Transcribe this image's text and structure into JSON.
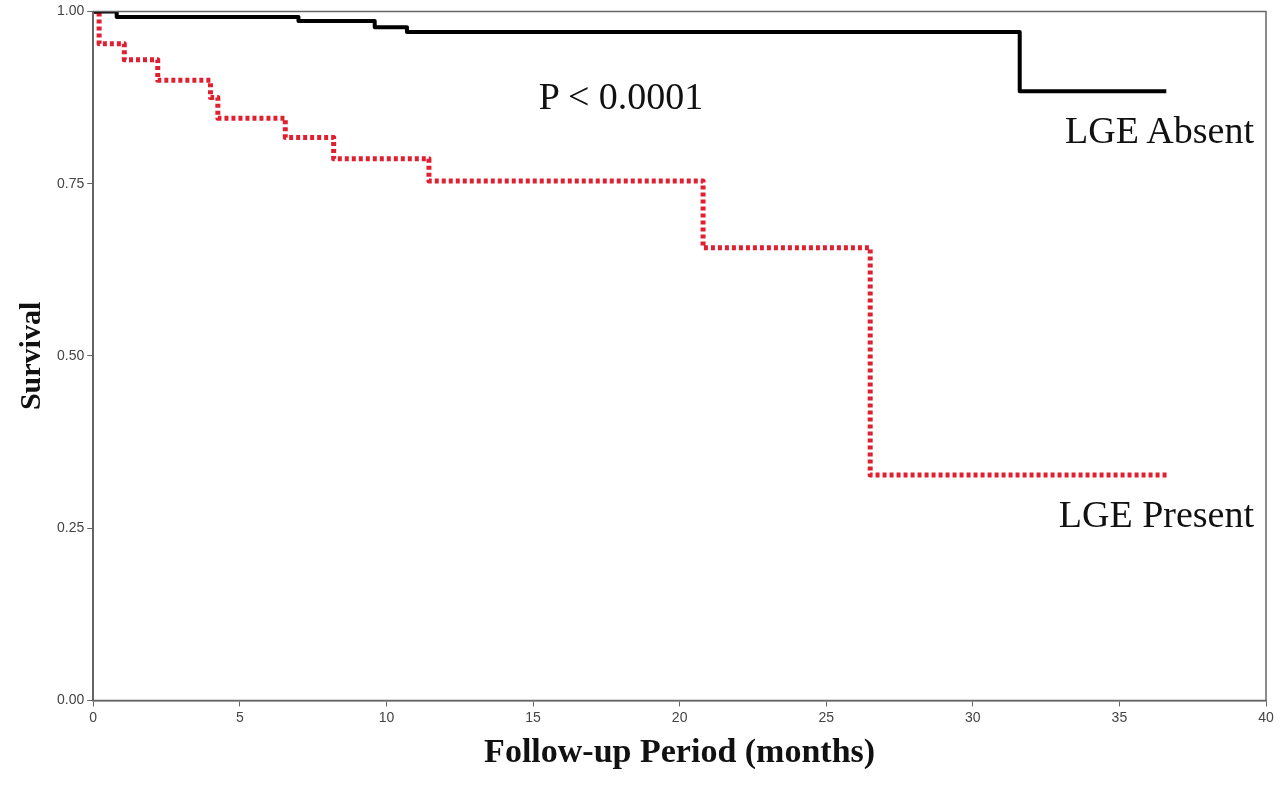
{
  "chart_data": {
    "type": "step",
    "xlabel": "Follow-up Period (months)",
    "ylabel": "Survival",
    "annotations": [
      "P < 0.0001"
    ],
    "xlim": [
      0,
      40
    ],
    "xticks": [
      0,
      5,
      10,
      15,
      20,
      25,
      30,
      35,
      40
    ],
    "ylim": [
      0,
      1
    ],
    "yticks": [
      {
        "value": 0,
        "label": "0.00"
      },
      {
        "value": 0.25,
        "label": "0.25"
      },
      {
        "value": 0.5,
        "label": "0.50"
      },
      {
        "value": 0.75,
        "label": "0.75"
      },
      {
        "value": 1,
        "label": "1.00"
      }
    ],
    "grid": false,
    "legend": false,
    "marker": "none",
    "series": [
      {
        "name": "LGE Absent",
        "color": "#000000",
        "line_style": "solid",
        "x": [
          0,
          0.8,
          7.0,
          9.6,
          10.7,
          31.6,
          36.6
        ],
        "values": [
          1.0,
          0.992,
          0.986,
          0.977,
          0.97,
          0.884,
          0.884
        ]
      },
      {
        "name": "LGE Present",
        "color": "#e02030",
        "line_style": "dotted",
        "x": [
          0,
          0.2,
          1.06,
          2.2,
          4.0,
          4.25,
          6.55,
          8.2,
          11.45,
          20.8,
          26.5,
          36.7
        ],
        "values": [
          1.0,
          0.953,
          0.93,
          0.9,
          0.875,
          0.845,
          0.817,
          0.786,
          0.754,
          0.657,
          0.327,
          0.327
        ]
      }
    ]
  }
}
